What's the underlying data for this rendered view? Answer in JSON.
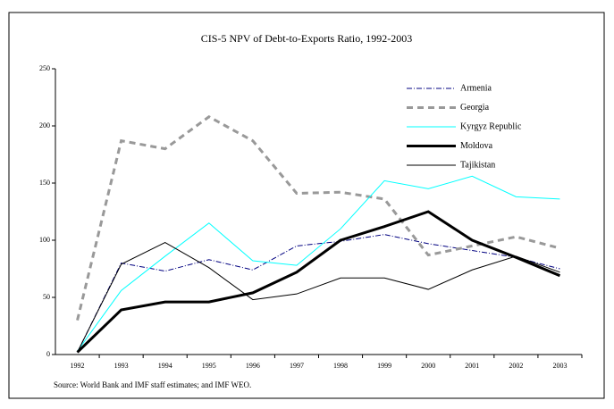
{
  "chart_data": {
    "type": "line",
    "title": "CIS-5 NPV of Debt-to-Exports Ratio, 1992-2003",
    "source": "Source: World Bank and IMF staff estimates; and IMF WEO.",
    "categories": [
      "1992",
      "1993",
      "1994",
      "1995",
      "1996",
      "1997",
      "1998",
      "1999",
      "2000",
      "2001",
      "2002",
      "2003"
    ],
    "series": [
      {
        "name": "Armenia",
        "color": "#000080",
        "dash": "6,2,1,2",
        "width": 1,
        "values": [
          2,
          80,
          73,
          83,
          74,
          95,
          99,
          105,
          97,
          91,
          85,
          75
        ]
      },
      {
        "name": "Georgia",
        "color": "#999999",
        "dash": "7,5",
        "width": 3,
        "values": [
          30,
          187,
          180,
          208,
          187,
          141,
          142,
          136,
          87,
          95,
          103,
          93
        ]
      },
      {
        "name": "Kyrgyz Republic",
        "color": "#00ffff",
        "dash": "none",
        "width": 1,
        "values": [
          3,
          56,
          86,
          115,
          82,
          78,
          110,
          152,
          145,
          156,
          138,
          136
        ]
      },
      {
        "name": "Moldova",
        "color": "#000000",
        "dash": "none",
        "width": 3,
        "values": [
          2,
          39,
          46,
          46,
          54,
          72,
          100,
          112,
          125,
          100,
          85,
          69
        ]
      },
      {
        "name": "Tajikistan",
        "color": "#000000",
        "dash": "none",
        "width": 1,
        "values": [
          2,
          79,
          98,
          76,
          48,
          53,
          67,
          67,
          57,
          74,
          86,
          72
        ]
      }
    ],
    "ylim": [
      0,
      250
    ],
    "yticks": [
      0,
      50,
      100,
      150,
      200,
      250
    ],
    "grid": false,
    "legend": "top-right"
  }
}
